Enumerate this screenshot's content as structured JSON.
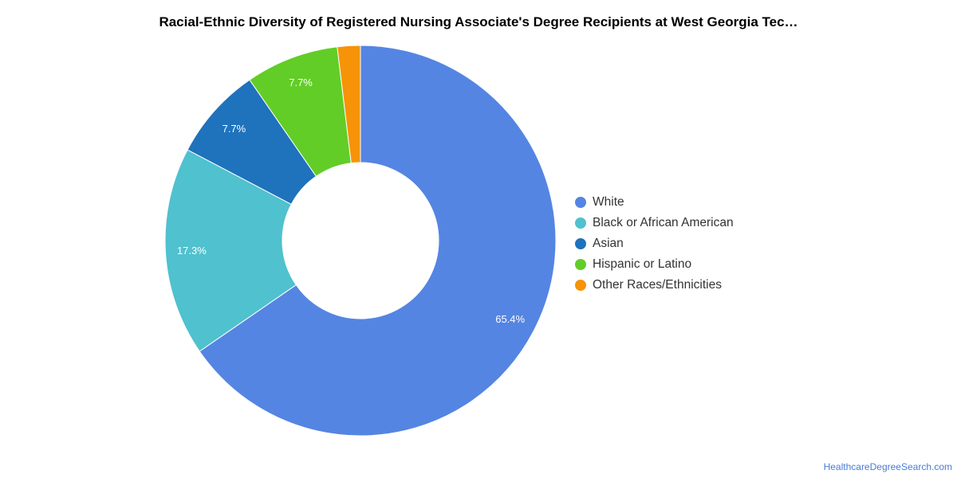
{
  "chart_data": {
    "type": "pie",
    "variant": "donut",
    "title": "Racial-Ethnic Diversity of Registered Nursing Associate's Degree Recipients at West Georgia Tec…",
    "categories": [
      "White",
      "Black or African American",
      "Asian",
      "Hispanic or Latino",
      "Other Races/Ethnicities"
    ],
    "values": [
      65.4,
      17.3,
      7.7,
      7.7,
      1.9
    ],
    "labels": [
      "65.4%",
      "17.3%",
      "7.7%",
      "7.7%",
      ""
    ],
    "colors": [
      "#5485e2",
      "#50c1ce",
      "#1f72bc",
      "#62cd27",
      "#f69307"
    ],
    "legend_position": "right"
  },
  "footer": {
    "source": "HealthcareDegreeSearch.com"
  }
}
